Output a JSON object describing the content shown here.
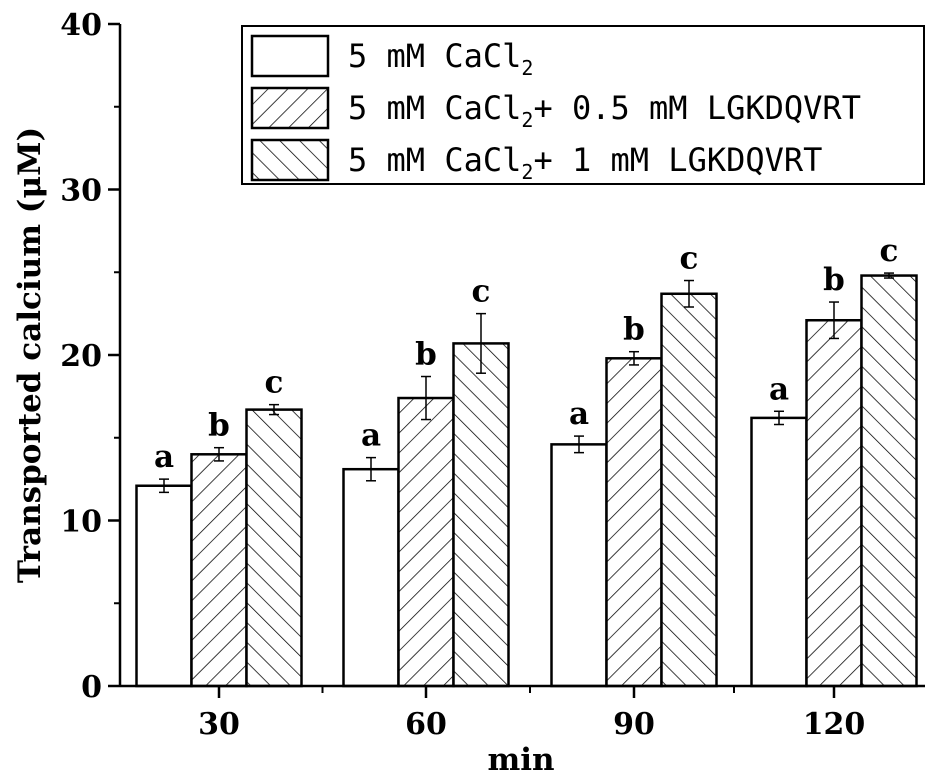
{
  "chart_data": {
    "type": "bar",
    "xlabel": "min",
    "ylabel": "Transported calcium (μM)",
    "ylim": [
      0,
      40
    ],
    "yticks": [
      0,
      10,
      20,
      30,
      40
    ],
    "categories": [
      "30",
      "60",
      "90",
      "120"
    ],
    "series": [
      {
        "name": "5 mM CaCl2",
        "legend_main": "5 mM CaCl",
        "legend_sub": "2",
        "legend_tail": "",
        "pattern": "none",
        "values": [
          12.1,
          13.1,
          14.6,
          16.2
        ],
        "errors": [
          0.4,
          0.7,
          0.5,
          0.4
        ],
        "labels": [
          "a",
          "a",
          "a",
          "a"
        ]
      },
      {
        "name": "5 mM CaCl2+ 0.5 mM LGKDQVRT",
        "legend_main": "5 mM CaCl",
        "legend_sub": "2",
        "legend_tail": "+ 0.5 mM LGKDQVRT",
        "pattern": "forward-hatch",
        "values": [
          14.0,
          17.4,
          19.8,
          22.1
        ],
        "errors": [
          0.4,
          1.3,
          0.4,
          1.1
        ],
        "labels": [
          "b",
          "b",
          "b",
          "b"
        ]
      },
      {
        "name": "5 mM CaCl2+ 1 mM LGKDQVRT",
        "legend_main": "5 mM CaCl",
        "legend_sub": "2",
        "legend_tail": "+ 1 mM LGKDQVRT",
        "pattern": "back-hatch",
        "values": [
          16.7,
          20.7,
          23.7,
          24.8
        ],
        "errors": [
          0.3,
          1.8,
          0.8,
          0.15
        ],
        "labels": [
          "c",
          "c",
          "c",
          "c"
        ]
      }
    ],
    "legend": "top-right",
    "grid": false,
    "colors": {
      "bar_fill": "#ffffff",
      "stroke": "#000000",
      "background": "#ffffff"
    }
  }
}
